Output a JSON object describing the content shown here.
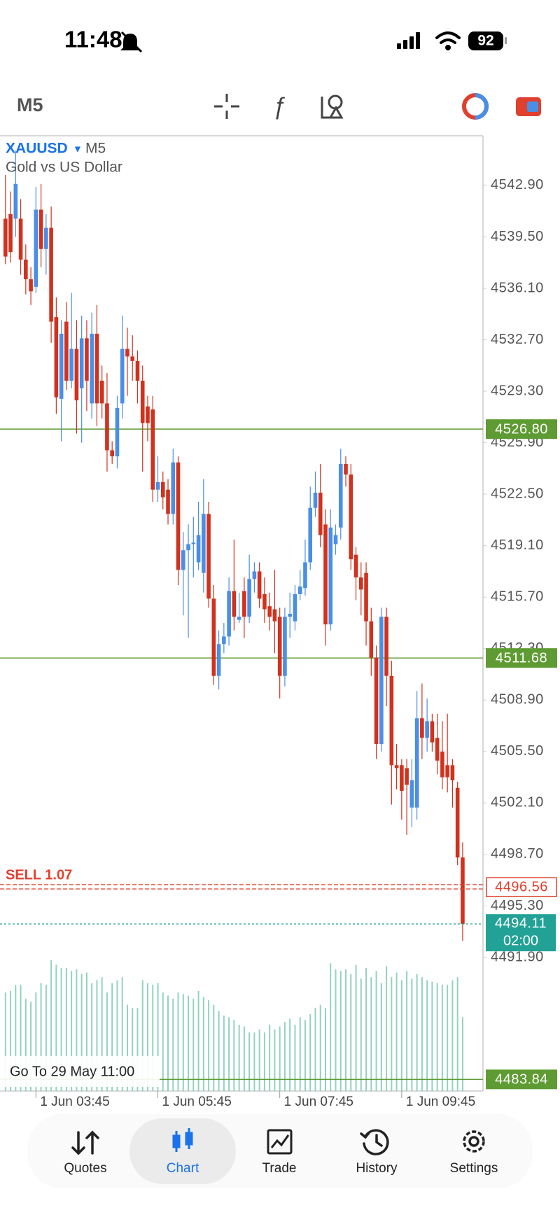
{
  "status_bar": {
    "time": "11:48",
    "battery": "92"
  },
  "toolbar": {
    "timeframe": "M5"
  },
  "chart_data": {
    "type": "candlestick",
    "symbol": "XAUUSD",
    "timeframe": "M5",
    "description": "Gold vs US Dollar",
    "up_color": "#4a8ee6",
    "down_color": "#d0321e",
    "volume_color": "#93d2c0",
    "ylim": [
      4483.07,
      4546.18
    ],
    "yticks": [
      {
        "value": 4542.9,
        "label": "4542.90"
      },
      {
        "value": 4539.5,
        "label": "4539.50"
      },
      {
        "value": 4536.1,
        "label": "4536.10"
      },
      {
        "value": 4532.7,
        "label": "4532.70"
      },
      {
        "value": 4529.3,
        "label": "4529.30"
      },
      {
        "value": 4525.9,
        "label": "4525.90"
      },
      {
        "value": 4522.5,
        "label": "4522.50"
      },
      {
        "value": 4519.1,
        "label": "4519.10"
      },
      {
        "value": 4515.7,
        "label": "4515.70"
      },
      {
        "value": 4512.3,
        "label": "4512.30"
      },
      {
        "value": 4508.9,
        "label": "4508.90"
      },
      {
        "value": 4505.5,
        "label": "4505.50"
      },
      {
        "value": 4502.1,
        "label": "4502.10"
      },
      {
        "value": 4498.7,
        "label": "4498.70"
      },
      {
        "value": 4495.3,
        "label": "4495.30"
      },
      {
        "value": 4491.9,
        "label": "4491.90"
      }
    ],
    "vlim": [
      0,
      1000
    ],
    "categories": [
      null,
      null,
      null,
      null,
      null,
      null,
      "1 Jun 03:45",
      null,
      null,
      null,
      null,
      null,
      null,
      null,
      null,
      null,
      null,
      null,
      null,
      null,
      null,
      null,
      null,
      null,
      null,
      null,
      null,
      null,
      null,
      null,
      "1 Jun 05:45",
      null,
      null,
      null,
      null,
      null,
      null,
      null,
      null,
      null,
      null,
      null,
      null,
      null,
      null,
      null,
      null,
      null,
      null,
      null,
      null,
      null,
      null,
      null,
      "1 Jun 07:45",
      null,
      null,
      null,
      null,
      null,
      null,
      null,
      null,
      null,
      null,
      null,
      null,
      null,
      null,
      null,
      null,
      null,
      null,
      null,
      null,
      null,
      null,
      null,
      "1 Jun 09:45",
      null,
      null,
      null,
      null,
      null,
      null,
      null,
      null,
      null,
      null,
      null,
      null
    ],
    "candles": [
      {
        "o": 4540.7,
        "h": 4543.6,
        "l": 4537.7,
        "c": 4538.2
      },
      {
        "o": 4541.0,
        "h": 4542.5,
        "l": 4537.8,
        "c": 4538.5
      },
      {
        "o": 4540.7,
        "h": 4545.2,
        "l": 4539.5,
        "c": 4543.0
      },
      {
        "o": 4540.7,
        "h": 4542.0,
        "l": 4537.0,
        "c": 4538.0
      },
      {
        "o": 4538.0,
        "h": 4539.0,
        "l": 4535.7,
        "c": 4536.7
      },
      {
        "o": 4536.7,
        "h": 4537.5,
        "l": 4535.0,
        "c": 4535.9
      },
      {
        "o": 4536.2,
        "h": 4542.8,
        "l": 4535.8,
        "c": 4541.3
      },
      {
        "o": 4541.3,
        "h": 4543.0,
        "l": 4537.5,
        "c": 4538.7
      },
      {
        "o": 4538.7,
        "h": 4541.0,
        "l": 4537.0,
        "c": 4540.1
      },
      {
        "o": 4540.1,
        "h": 4541.5,
        "l": 4532.5,
        "c": 4533.9
      },
      {
        "o": 4534.2,
        "h": 4535.5,
        "l": 4527.8,
        "c": 4528.9
      },
      {
        "o": 4528.8,
        "h": 4534.0,
        "l": 4526.0,
        "c": 4533.1
      },
      {
        "o": 4533.9,
        "h": 4535.2,
        "l": 4529.4,
        "c": 4530.0
      },
      {
        "o": 4530.0,
        "h": 4535.8,
        "l": 4529.5,
        "c": 4532.1
      },
      {
        "o": 4532.1,
        "h": 4534.0,
        "l": 4526.5,
        "c": 4528.7
      },
      {
        "o": 4529.5,
        "h": 4534.3,
        "l": 4525.9,
        "c": 4532.8
      },
      {
        "o": 4532.8,
        "h": 4534.0,
        "l": 4528.0,
        "c": 4530.0
      },
      {
        "o": 4528.5,
        "h": 4534.5,
        "l": 4527.5,
        "c": 4533.1
      },
      {
        "o": 4533.1,
        "h": 4535.0,
        "l": 4527.0,
        "c": 4528.5
      },
      {
        "o": 4530.0,
        "h": 4531.0,
        "l": 4527.5,
        "c": 4528.5
      },
      {
        "o": 4528.5,
        "h": 4530.5,
        "l": 4524.0,
        "c": 4525.4
      },
      {
        "o": 4525.4,
        "h": 4526.0,
        "l": 4524.5,
        "c": 4525.0
      },
      {
        "o": 4525.0,
        "h": 4529.0,
        "l": 4524.2,
        "c": 4528.2
      },
      {
        "o": 4528.5,
        "h": 4534.3,
        "l": 4527.5,
        "c": 4532.1
      },
      {
        "o": 4532.1,
        "h": 4533.5,
        "l": 4529.0,
        "c": 4531.6
      },
      {
        "o": 4531.6,
        "h": 4533.0,
        "l": 4530.0,
        "c": 4531.3
      },
      {
        "o": 4531.3,
        "h": 4532.0,
        "l": 4528.5,
        "c": 4530.0
      },
      {
        "o": 4530.0,
        "h": 4531.0,
        "l": 4524.0,
        "c": 4527.2
      },
      {
        "o": 4528.3,
        "h": 4529.0,
        "l": 4526.0,
        "c": 4527.2
      },
      {
        "o": 4528.1,
        "h": 4529.0,
        "l": 4522.0,
        "c": 4522.8
      },
      {
        "o": 4522.8,
        "h": 4525.0,
        "l": 4522.0,
        "c": 4523.3
      },
      {
        "o": 4523.3,
        "h": 4524.0,
        "l": 4521.5,
        "c": 4522.3
      },
      {
        "o": 4522.8,
        "h": 4523.5,
        "l": 4520.5,
        "c": 4521.2
      },
      {
        "o": 4521.2,
        "h": 4525.5,
        "l": 4520.5,
        "c": 4524.6
      },
      {
        "o": 4524.6,
        "h": 4525.0,
        "l": 4516.5,
        "c": 4517.5
      },
      {
        "o": 4517.5,
        "h": 4520.0,
        "l": 4514.5,
        "c": 4518.8
      },
      {
        "o": 4518.8,
        "h": 4520.5,
        "l": 4513.0,
        "c": 4519.2
      },
      {
        "o": 4519.2,
        "h": 4521.0,
        "l": 4517.0,
        "c": 4519.3
      },
      {
        "o": 4518.0,
        "h": 4522.0,
        "l": 4517.5,
        "c": 4519.8
      },
      {
        "o": 4517.3,
        "h": 4523.5,
        "l": 4516.0,
        "c": 4521.2
      },
      {
        "o": 4521.2,
        "h": 4522.0,
        "l": 4515.0,
        "c": 4515.6
      },
      {
        "o": 4515.6,
        "h": 4516.5,
        "l": 4509.9,
        "c": 4510.5
      },
      {
        "o": 4510.5,
        "h": 4513.5,
        "l": 4509.6,
        "c": 4512.6
      },
      {
        "o": 4512.6,
        "h": 4514.0,
        "l": 4512.0,
        "c": 4513.1
      },
      {
        "o": 4513.1,
        "h": 4517.0,
        "l": 4512.5,
        "c": 4516.1
      },
      {
        "o": 4516.1,
        "h": 4519.5,
        "l": 4513.5,
        "c": 4514.4
      },
      {
        "o": 4514.2,
        "h": 4516.0,
        "l": 4514.0,
        "c": 4514.4
      },
      {
        "o": 4516.1,
        "h": 4517.0,
        "l": 4513.0,
        "c": 4514.4
      },
      {
        "o": 4514.4,
        "h": 4518.5,
        "l": 4514.0,
        "c": 4516.9
      },
      {
        "o": 4516.9,
        "h": 4518.0,
        "l": 4516.0,
        "c": 4517.4
      },
      {
        "o": 4517.4,
        "h": 4518.0,
        "l": 4515.0,
        "c": 4515.6
      },
      {
        "o": 4515.9,
        "h": 4517.0,
        "l": 4514.0,
        "c": 4514.9
      },
      {
        "o": 4515.1,
        "h": 4516.0,
        "l": 4513.5,
        "c": 4514.4
      },
      {
        "o": 4514.9,
        "h": 4517.5,
        "l": 4512.0,
        "c": 4514.1
      },
      {
        "o": 4514.4,
        "h": 4515.0,
        "l": 4509.0,
        "c": 4510.5
      },
      {
        "o": 4510.5,
        "h": 4515.0,
        "l": 4509.8,
        "c": 4514.4
      },
      {
        "o": 4514.4,
        "h": 4516.0,
        "l": 4513.0,
        "c": 4514.6
      },
      {
        "o": 4514.1,
        "h": 4516.5,
        "l": 4513.5,
        "c": 4515.9
      },
      {
        "o": 4515.9,
        "h": 4517.5,
        "l": 4515.5,
        "c": 4516.4
      },
      {
        "o": 4516.3,
        "h": 4519.5,
        "l": 4515.8,
        "c": 4518.0
      },
      {
        "o": 4518.0,
        "h": 4523.0,
        "l": 4517.5,
        "c": 4521.6
      },
      {
        "o": 4521.6,
        "h": 4524.0,
        "l": 4521.0,
        "c": 4522.6
      },
      {
        "o": 4522.6,
        "h": 4524.5,
        "l": 4519.0,
        "c": 4519.8
      },
      {
        "o": 4520.5,
        "h": 4521.5,
        "l": 4512.5,
        "c": 4513.9
      },
      {
        "o": 4513.9,
        "h": 4521.5,
        "l": 4513.5,
        "c": 4520.3
      },
      {
        "o": 4519.2,
        "h": 4520.5,
        "l": 4518.5,
        "c": 4519.8
      },
      {
        "o": 4520.3,
        "h": 4525.5,
        "l": 4519.5,
        "c": 4524.5
      },
      {
        "o": 4524.5,
        "h": 4525.0,
        "l": 4523.0,
        "c": 4523.8
      },
      {
        "o": 4523.8,
        "h": 4524.5,
        "l": 4517.5,
        "c": 4518.2
      },
      {
        "o": 4518.5,
        "h": 4519.0,
        "l": 4515.5,
        "c": 4517.0
      },
      {
        "o": 4517.0,
        "h": 4518.0,
        "l": 4514.5,
        "c": 4516.2
      },
      {
        "o": 4517.3,
        "h": 4518.0,
        "l": 4512.5,
        "c": 4514.1
      },
      {
        "o": 4514.1,
        "h": 4515.0,
        "l": 4510.5,
        "c": 4511.7
      },
      {
        "o": 4511.7,
        "h": 4512.5,
        "l": 4505.0,
        "c": 4506.0
      },
      {
        "o": 4506.0,
        "h": 4515.0,
        "l": 4505.5,
        "c": 4514.4
      },
      {
        "o": 4514.4,
        "h": 4515.0,
        "l": 4508.5,
        "c": 4510.5
      },
      {
        "o": 4510.5,
        "h": 4511.5,
        "l": 4502.0,
        "c": 4504.6
      },
      {
        "o": 4504.6,
        "h": 4506.0,
        "l": 4503.0,
        "c": 4504.4
      },
      {
        "o": 4504.6,
        "h": 4505.0,
        "l": 4501.0,
        "c": 4502.9
      },
      {
        "o": 4504.4,
        "h": 4505.0,
        "l": 4500.0,
        "c": 4503.3
      },
      {
        "o": 4501.8,
        "h": 4505.0,
        "l": 4500.5,
        "c": 4503.6
      },
      {
        "o": 4501.8,
        "h": 4509.5,
        "l": 4501.0,
        "c": 4507.7
      },
      {
        "o": 4507.7,
        "h": 4510.0,
        "l": 4505.0,
        "c": 4506.4
      },
      {
        "o": 4506.4,
        "h": 4509.0,
        "l": 4505.5,
        "c": 4507.5
      },
      {
        "o": 4507.5,
        "h": 4508.0,
        "l": 4505.5,
        "c": 4506.1
      },
      {
        "o": 4506.4,
        "h": 4508.0,
        "l": 4504.0,
        "c": 4504.9
      },
      {
        "o": 4505.5,
        "h": 4507.5,
        "l": 4503.0,
        "c": 4503.8
      },
      {
        "o": 4504.6,
        "h": 4508.0,
        "l": 4502.8,
        "c": 4503.8
      },
      {
        "o": 4504.6,
        "h": 4505.0,
        "l": 4501.8,
        "c": 4503.6
      },
      {
        "o": 4503.1,
        "h": 4503.5,
        "l": 4498.0,
        "c": 4498.5
      },
      {
        "o": 4498.5,
        "h": 4499.5,
        "l": 4493.0,
        "c": 4494.11
      }
    ],
    "volumes": [
      640,
      650,
      690,
      690,
      600,
      580,
      640,
      700,
      690,
      850,
      820,
      800,
      800,
      780,
      790,
      760,
      770,
      700,
      720,
      740,
      640,
      700,
      720,
      740,
      560,
      540,
      540,
      720,
      700,
      690,
      700,
      640,
      620,
      600,
      640,
      630,
      620,
      600,
      650,
      610,
      590,
      560,
      520,
      490,
      480,
      460,
      430,
      420,
      380,
      380,
      400,
      380,
      430,
      400,
      420,
      450,
      470,
      430,
      480,
      460,
      500,
      540,
      560,
      540,
      830,
      790,
      780,
      790,
      760,
      820,
      730,
      800,
      740,
      780,
      700,
      810,
      740,
      770,
      720,
      780,
      730,
      760,
      740,
      720,
      710,
      700,
      690,
      690,
      720,
      740,
      480
    ],
    "levels": [
      {
        "value": 4526.8,
        "label": "4526.80",
        "color": "#5e9b32"
      },
      {
        "value": 4511.68,
        "label": "4511.68",
        "color": "#5e9b32"
      },
      {
        "value": 4483.84,
        "label": "4483.84",
        "color": "#5e9b32"
      }
    ],
    "order": {
      "text": "SELL 1.07",
      "value": 4496.56,
      "label": "4496.56",
      "color": "#e0402e"
    },
    "current": {
      "value": 4494.11,
      "label": "4494.11",
      "timer": "02:00",
      "color": "#22a297"
    },
    "goto": "Go To 29 May 11:00"
  },
  "nav": {
    "items": [
      "Quotes",
      "Chart",
      "Trade",
      "History",
      "Settings"
    ],
    "active": 1
  }
}
